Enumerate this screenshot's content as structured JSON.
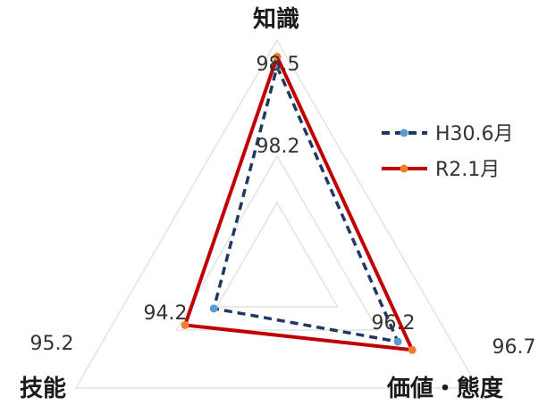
{
  "chart_data": {
    "type": "radar",
    "axes": [
      "知識",
      "価値・態度",
      "技能"
    ],
    "series": [
      {
        "name": "H30.6月",
        "values": [
          98.2,
          96.2,
          94.2
        ],
        "color": "#1f3864",
        "line_style": "dashed",
        "marker_color": "#5b9bd5"
      },
      {
        "name": "R2.1月",
        "values": [
          98.5,
          96.7,
          95.2
        ],
        "color": "#c00000",
        "line_style": "solid",
        "marker_color": "#ed7d31"
      }
    ],
    "legend_position": "right",
    "grid": true
  }
}
